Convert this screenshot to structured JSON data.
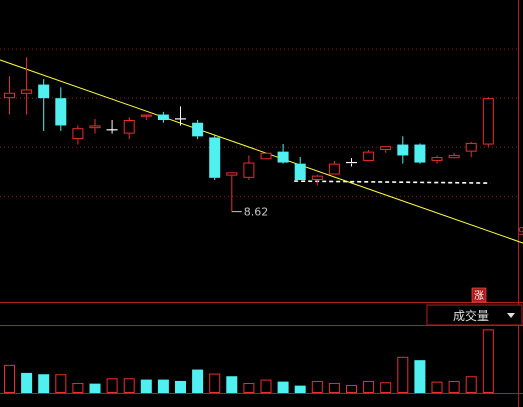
{
  "colors": {
    "up": "#e83030",
    "down": "#50f0f0",
    "doji": "#ffffff",
    "trendline": "#ffff40",
    "support": "#ffffff",
    "grid": "#8b1a1a",
    "axis": "#b02020",
    "bg": "#000000"
  },
  "chart_data": [
    {
      "type": "candlestick",
      "title": "",
      "ylim": [
        7.0,
        12.5
      ],
      "grid_values": [
        11.6,
        10.7,
        9.8,
        8.9
      ],
      "low_marker": {
        "index": 13,
        "value": 8.62,
        "label": "8.62"
      },
      "trendline": {
        "from": {
          "index": -1,
          "value": 11.45
        },
        "to": {
          "index": 31.8,
          "value": 7.85
        }
      },
      "support_line": {
        "from_index": 17,
        "to_index": 28,
        "value": 9.18
      },
      "candles": [
        {
          "open": 10.7,
          "high": 11.1,
          "low": 10.4,
          "close": 10.8
        },
        {
          "open": 10.78,
          "high": 11.45,
          "low": 10.4,
          "close": 10.86
        },
        {
          "open": 10.95,
          "high": 11.05,
          "low": 10.1,
          "close": 10.7
        },
        {
          "open": 10.7,
          "high": 10.9,
          "low": 10.1,
          "close": 10.2
        },
        {
          "open": 9.95,
          "high": 10.2,
          "low": 9.85,
          "close": 10.15
        },
        {
          "open": 10.15,
          "high": 10.32,
          "low": 10.05,
          "close": 10.2
        },
        {
          "open": 10.12,
          "high": 10.3,
          "low": 10.05,
          "close": 10.12
        },
        {
          "open": 10.05,
          "high": 10.35,
          "low": 9.95,
          "close": 10.3
        },
        {
          "open": 10.36,
          "high": 10.4,
          "low": 10.3,
          "close": 10.4
        },
        {
          "open": 10.4,
          "high": 10.45,
          "low": 10.25,
          "close": 10.3
        },
        {
          "open": 10.32,
          "high": 10.55,
          "low": 10.2,
          "close": 10.32
        },
        {
          "open": 10.25,
          "high": 10.3,
          "low": 9.95,
          "close": 10.0
        },
        {
          "open": 9.98,
          "high": 10.02,
          "low": 9.2,
          "close": 9.24
        },
        {
          "open": 9.28,
          "high": 9.34,
          "low": 8.62,
          "close": 9.34
        },
        {
          "open": 9.24,
          "high": 9.65,
          "low": 9.2,
          "close": 9.52
        },
        {
          "open": 9.58,
          "high": 9.7,
          "low": 9.58,
          "close": 9.7
        },
        {
          "open": 9.72,
          "high": 9.86,
          "low": 9.5,
          "close": 9.52
        },
        {
          "open": 9.5,
          "high": 9.62,
          "low": 9.2,
          "close": 9.2
        },
        {
          "open": 9.2,
          "high": 9.3,
          "low": 9.1,
          "close": 9.28
        },
        {
          "open": 9.3,
          "high": 9.55,
          "low": 9.3,
          "close": 9.5
        },
        {
          "open": 9.5,
          "high": 9.6,
          "low": 9.45,
          "close": 9.52
        },
        {
          "open": 9.55,
          "high": 9.75,
          "low": 9.55,
          "close": 9.72
        },
        {
          "open": 9.75,
          "high": 9.82,
          "low": 9.7,
          "close": 9.82
        },
        {
          "open": 9.85,
          "high": 10.0,
          "low": 9.5,
          "close": 9.65
        },
        {
          "open": 9.85,
          "high": 9.87,
          "low": 9.5,
          "close": 9.52
        },
        {
          "open": 9.55,
          "high": 9.65,
          "low": 9.5,
          "close": 9.62
        },
        {
          "open": 9.6,
          "high": 9.7,
          "low": 9.6,
          "close": 9.66
        },
        {
          "open": 9.72,
          "high": 9.9,
          "low": 9.62,
          "close": 9.88
        },
        {
          "open": 9.85,
          "high": 10.72,
          "low": 9.8,
          "close": 10.7
        }
      ]
    },
    {
      "type": "bar",
      "title": "",
      "selector_label": "成交量",
      "ylim": [
        0,
        100
      ],
      "values": [
        {
          "v": 42,
          "dir": "up"
        },
        {
          "v": 30,
          "dir": "down"
        },
        {
          "v": 28,
          "dir": "down"
        },
        {
          "v": 28,
          "dir": "up"
        },
        {
          "v": 15,
          "dir": "up"
        },
        {
          "v": 14,
          "dir": "down"
        },
        {
          "v": 22,
          "dir": "up"
        },
        {
          "v": 22,
          "dir": "up"
        },
        {
          "v": 20,
          "dir": "down"
        },
        {
          "v": 20,
          "dir": "down"
        },
        {
          "v": 18,
          "dir": "down"
        },
        {
          "v": 35,
          "dir": "down"
        },
        {
          "v": 29,
          "dir": "up"
        },
        {
          "v": 25,
          "dir": "down"
        },
        {
          "v": 15,
          "dir": "up"
        },
        {
          "v": 20,
          "dir": "up"
        },
        {
          "v": 17,
          "dir": "down"
        },
        {
          "v": 11,
          "dir": "down"
        },
        {
          "v": 18,
          "dir": "up"
        },
        {
          "v": 15,
          "dir": "up"
        },
        {
          "v": 12,
          "dir": "up"
        },
        {
          "v": 18,
          "dir": "up"
        },
        {
          "v": 16,
          "dir": "up"
        },
        {
          "v": 54,
          "dir": "up"
        },
        {
          "v": 49,
          "dir": "down"
        },
        {
          "v": 17,
          "dir": "up"
        },
        {
          "v": 18,
          "dir": "up"
        },
        {
          "v": 25,
          "dir": "up"
        },
        {
          "v": 95,
          "dir": "up"
        }
      ]
    }
  ],
  "price_axis": {
    "visible_tick": "9"
  },
  "badge": {
    "label": "涨"
  }
}
